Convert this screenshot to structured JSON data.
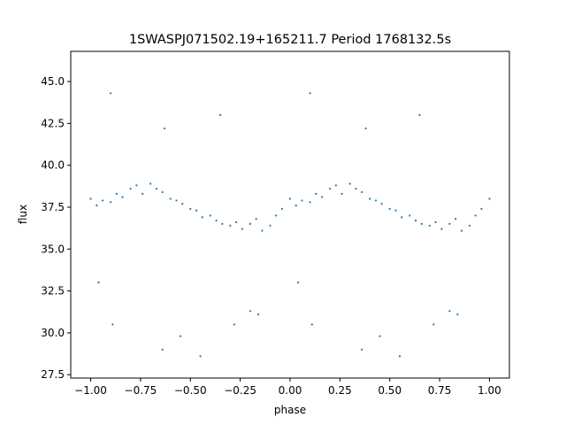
{
  "chart_data": {
    "type": "scatter",
    "title": "1SWASPJ071502.19+165211.7 Period 1768132.5s",
    "xlabel": "phase",
    "ylabel": "flux",
    "xlim": [
      -1.1,
      1.1
    ],
    "ylim": [
      27.3,
      46.8
    ],
    "x_ticks": [
      -1.0,
      -0.75,
      -0.5,
      -0.25,
      0.0,
      0.25,
      0.5,
      0.75,
      1.0
    ],
    "x_tick_labels": [
      "−1.00",
      "−0.75",
      "−0.50",
      "−0.25",
      "0.00",
      "0.25",
      "0.50",
      "0.75",
      "1.00"
    ],
    "y_ticks": [
      27.5,
      30.0,
      32.5,
      35.0,
      37.5,
      40.0,
      42.5,
      45.0
    ],
    "y_tick_labels": [
      "27.5",
      "30.0",
      "32.5",
      "35.0",
      "37.5",
      "40.0",
      "42.5",
      "45.0"
    ],
    "grid": false,
    "marker_color": "#1f77b4",
    "series": [
      {
        "points": [
          [
            -1.0,
            38.0
          ],
          [
            -0.97,
            37.6
          ],
          [
            -0.94,
            37.9
          ],
          [
            -0.9,
            37.8
          ],
          [
            -0.87,
            38.3
          ],
          [
            -0.84,
            38.1
          ],
          [
            -0.8,
            38.6
          ],
          [
            -0.77,
            38.8
          ],
          [
            -0.74,
            38.3
          ],
          [
            -0.7,
            38.9
          ],
          [
            -0.67,
            38.6
          ],
          [
            -0.64,
            38.4
          ],
          [
            -0.6,
            38.0
          ],
          [
            -0.57,
            37.9
          ],
          [
            -0.54,
            37.7
          ],
          [
            -0.5,
            37.4
          ],
          [
            -0.47,
            37.3
          ],
          [
            -0.44,
            36.9
          ],
          [
            -0.4,
            37.0
          ],
          [
            -0.37,
            36.7
          ],
          [
            -0.34,
            36.5
          ],
          [
            -0.3,
            36.4
          ],
          [
            -0.27,
            36.6
          ],
          [
            -0.24,
            36.2
          ],
          [
            -0.2,
            36.5
          ],
          [
            -0.17,
            36.8
          ],
          [
            -0.14,
            36.1
          ],
          [
            -0.1,
            36.4
          ],
          [
            -0.07,
            37.0
          ],
          [
            -0.04,
            37.4
          ],
          [
            0.0,
            38.0
          ],
          [
            0.03,
            37.6
          ],
          [
            0.06,
            37.9
          ],
          [
            0.1,
            37.8
          ],
          [
            0.13,
            38.3
          ],
          [
            0.16,
            38.1
          ],
          [
            0.2,
            38.6
          ],
          [
            0.23,
            38.8
          ],
          [
            0.26,
            38.3
          ],
          [
            0.3,
            38.9
          ],
          [
            0.33,
            38.6
          ],
          [
            0.36,
            38.4
          ],
          [
            0.4,
            38.0
          ],
          [
            0.43,
            37.9
          ],
          [
            0.46,
            37.7
          ],
          [
            0.5,
            37.4
          ],
          [
            0.53,
            37.3
          ],
          [
            0.56,
            36.9
          ],
          [
            0.6,
            37.0
          ],
          [
            0.63,
            36.7
          ],
          [
            0.66,
            36.5
          ],
          [
            0.7,
            36.4
          ],
          [
            0.73,
            36.6
          ],
          [
            0.76,
            36.2
          ],
          [
            0.8,
            36.5
          ],
          [
            0.83,
            36.8
          ],
          [
            0.86,
            36.1
          ],
          [
            0.9,
            36.4
          ],
          [
            0.93,
            37.0
          ],
          [
            0.96,
            37.4
          ],
          [
            1.0,
            38.0
          ],
          [
            -0.89,
            30.5
          ],
          [
            -0.64,
            29.0
          ],
          [
            -0.55,
            29.8
          ],
          [
            -0.28,
            30.5
          ],
          [
            -0.2,
            31.3
          ],
          [
            -0.16,
            31.1
          ],
          [
            0.11,
            30.5
          ],
          [
            0.36,
            29.0
          ],
          [
            0.45,
            29.8
          ],
          [
            0.72,
            30.5
          ],
          [
            0.8,
            31.3
          ],
          [
            0.84,
            31.1
          ],
          [
            -0.63,
            42.2
          ],
          [
            0.38,
            42.2
          ],
          [
            -0.9,
            44.3
          ],
          [
            0.1,
            44.3
          ],
          [
            -0.96,
            33.0
          ],
          [
            0.04,
            33.0
          ],
          [
            -0.45,
            28.6
          ],
          [
            0.55,
            28.6
          ],
          [
            -0.35,
            43.0
          ],
          [
            0.65,
            43.0
          ]
        ]
      }
    ]
  }
}
